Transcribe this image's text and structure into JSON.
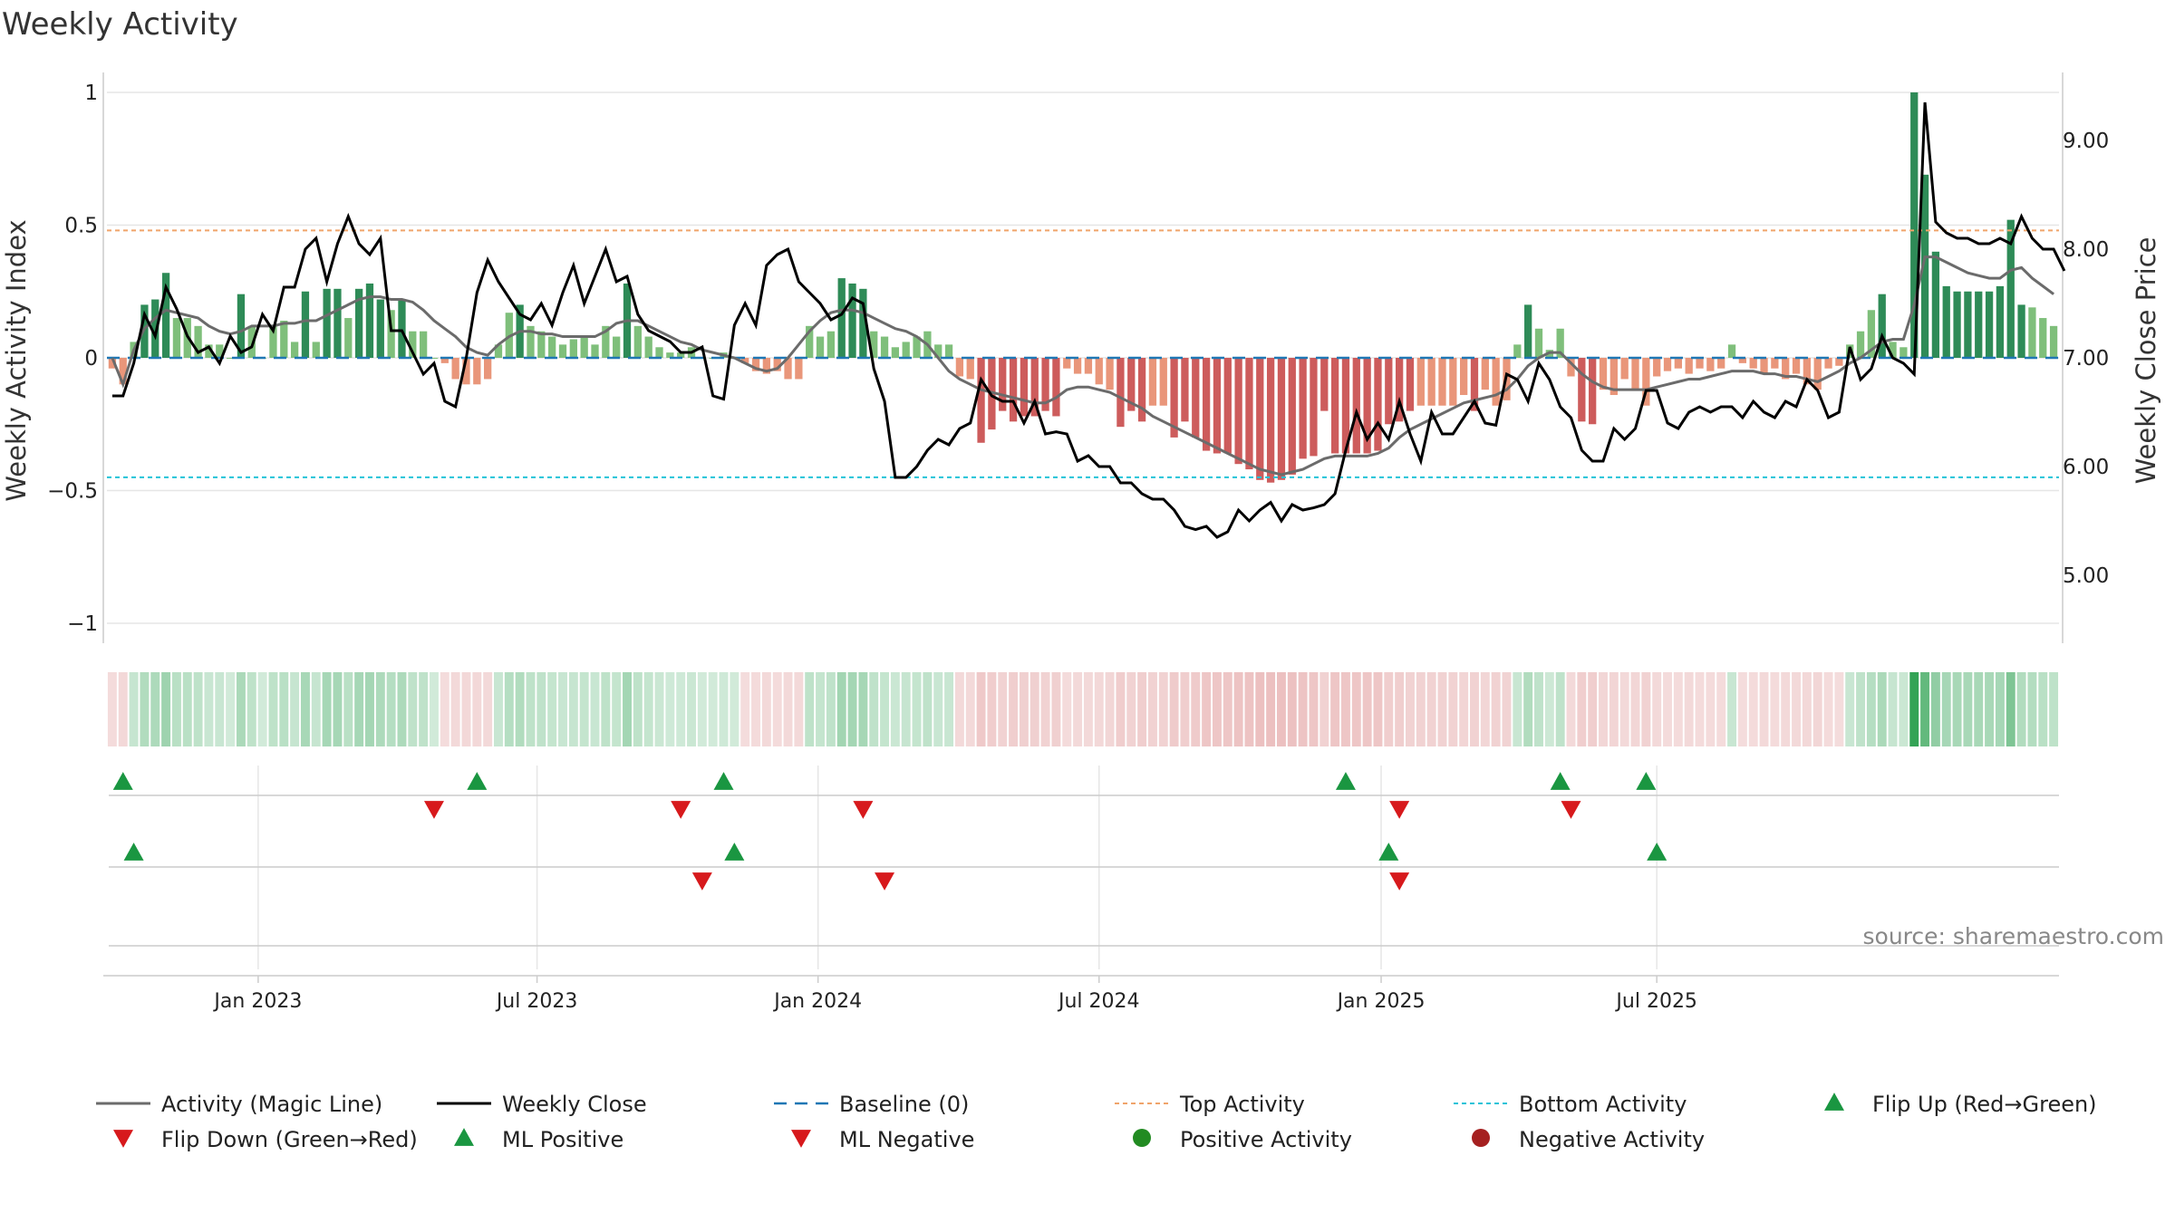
{
  "chart_data": {
    "type": "bar",
    "title": "Weekly Activity",
    "ylabel": "Weekly Activity Index",
    "y2label": "Weekly Close Price",
    "source": "source: sharemaestro.com",
    "ylim": [
      -1.1,
      1.05
    ],
    "y2lim": [
      4.55,
      9.5
    ],
    "yticks": [
      {
        "v": 1,
        "label": "1"
      },
      {
        "v": 0.5,
        "label": "0.5"
      },
      {
        "v": 0,
        "label": "0"
      },
      {
        "v": -0.5,
        "label": "−0.5"
      },
      {
        "v": -1,
        "label": "−1"
      }
    ],
    "y2ticks": [
      {
        "v": 9,
        "label": "9.00"
      },
      {
        "v": 8,
        "label": "8.00"
      },
      {
        "v": 7,
        "label": "7.00"
      },
      {
        "v": 6,
        "label": "6.00"
      },
      {
        "v": 5,
        "label": "5.00"
      }
    ],
    "xticks": [
      {
        "w": 13.6,
        "label": "Jan 2023"
      },
      {
        "w": 39.6,
        "label": "Jul 2023"
      },
      {
        "w": 65.8,
        "label": "Jan 2024"
      },
      {
        "w": 92.0,
        "label": "Jul 2024"
      },
      {
        "w": 118.3,
        "label": "Jan 2025"
      },
      {
        "w": 144.0,
        "label": "Jul 2025"
      }
    ],
    "reference_lines": {
      "top_activity": 0.48,
      "bottom_activity": -0.45,
      "baseline": 0
    },
    "series": [
      {
        "name": "Weekly Activity Index",
        "values": [
          -0.04,
          -0.1,
          0.06,
          0.2,
          0.22,
          0.32,
          0.15,
          0.15,
          0.12,
          0.05,
          0.05,
          0,
          0.24,
          0.12,
          0,
          0.12,
          0.14,
          0.06,
          0.25,
          0.06,
          0.26,
          0.26,
          0.15,
          0.26,
          0.28,
          0.22,
          0.18,
          0.22,
          0.1,
          0.1,
          0,
          -0.02,
          -0.08,
          -0.1,
          -0.1,
          -0.08,
          0.05,
          0.17,
          0.2,
          0.12,
          0.1,
          0.08,
          0.05,
          0.07,
          0.08,
          0.05,
          0.12,
          0.08,
          0.28,
          0.12,
          0.08,
          0.04,
          0.02,
          0.02,
          0.04,
          0,
          0,
          0.02,
          0,
          -0.02,
          -0.05,
          -0.06,
          -0.05,
          -0.08,
          -0.08,
          0.12,
          0.08,
          0.1,
          0.3,
          0.28,
          0.26,
          0.1,
          0.08,
          0.04,
          0.06,
          0.08,
          0.1,
          0.05,
          0.05,
          -0.07,
          -0.08,
          -0.32,
          -0.27,
          -0.2,
          -0.24,
          -0.22,
          -0.22,
          -0.2,
          -0.22,
          -0.04,
          -0.06,
          -0.06,
          -0.1,
          -0.12,
          -0.26,
          -0.2,
          -0.24,
          -0.18,
          -0.18,
          -0.3,
          -0.24,
          -0.3,
          -0.35,
          -0.36,
          -0.36,
          -0.4,
          -0.42,
          -0.46,
          -0.47,
          -0.46,
          -0.44,
          -0.38,
          -0.37,
          -0.2,
          -0.36,
          -0.36,
          -0.36,
          -0.36,
          -0.35,
          -0.25,
          -0.24,
          -0.2,
          -0.18,
          -0.18,
          -0.18,
          -0.18,
          -0.14,
          -0.2,
          -0.12,
          -0.18,
          -0.16,
          0.05,
          0.2,
          0.11,
          0.03,
          0.11,
          -0.07,
          -0.24,
          -0.25,
          -0.12,
          -0.14,
          -0.08,
          -0.12,
          -0.18,
          -0.07,
          -0.05,
          -0.04,
          -0.06,
          -0.04,
          -0.05,
          -0.04,
          0.05,
          -0.02,
          -0.04,
          -0.06,
          -0.04,
          -0.08,
          -0.06,
          -0.1,
          -0.12,
          -0.04,
          -0.03,
          0.05,
          0.1,
          0.18,
          0.24,
          0.06,
          0.04,
          1.0,
          0.69,
          0.4,
          0.27,
          0.25,
          0.25,
          0.25,
          0.25,
          0.27,
          0.52,
          0.2,
          0.19,
          0.15,
          0.12
        ]
      },
      {
        "name": "Weekly Close",
        "values": [
          6.65,
          6.65,
          6.95,
          7.4,
          7.2,
          7.65,
          7.45,
          7.2,
          7.05,
          7.1,
          6.95,
          7.2,
          7.05,
          7.1,
          7.4,
          7.25,
          7.65,
          7.65,
          8.0,
          8.1,
          7.7,
          8.05,
          8.3,
          8.05,
          7.95,
          8.1,
          7.25,
          7.25,
          7.05,
          6.85,
          6.95,
          6.6,
          6.55,
          7.0,
          7.6,
          7.9,
          7.7,
          7.55,
          7.4,
          7.35,
          7.5,
          7.3,
          7.6,
          7.85,
          7.5,
          7.75,
          8.0,
          7.7,
          7.75,
          7.4,
          7.25,
          7.2,
          7.15,
          7.05,
          7.05,
          7.1,
          6.65,
          6.62,
          7.3,
          7.5,
          7.3,
          7.85,
          7.95,
          8.0,
          7.7,
          7.6,
          7.5,
          7.35,
          7.4,
          7.55,
          7.5,
          6.9,
          6.6,
          5.9,
          5.9,
          6.0,
          6.15,
          6.25,
          6.2,
          6.35,
          6.4,
          6.8,
          6.65,
          6.6,
          6.6,
          6.4,
          6.6,
          6.3,
          6.32,
          6.3,
          6.05,
          6.1,
          6.0,
          6.0,
          5.85,
          5.85,
          5.75,
          5.7,
          5.7,
          5.6,
          5.45,
          5.42,
          5.45,
          5.35,
          5.4,
          5.6,
          5.5,
          5.6,
          5.67,
          5.5,
          5.65,
          5.6,
          5.62,
          5.65,
          5.75,
          6.15,
          6.5,
          6.25,
          6.4,
          6.25,
          6.6,
          6.3,
          6.05,
          6.5,
          6.3,
          6.3,
          6.45,
          6.6,
          6.4,
          6.38,
          6.85,
          6.8,
          6.6,
          6.95,
          6.8,
          6.55,
          6.45,
          6.15,
          6.05,
          6.05,
          6.35,
          6.25,
          6.35,
          6.7,
          6.7,
          6.4,
          6.35,
          6.5,
          6.55,
          6.5,
          6.55,
          6.55,
          6.45,
          6.6,
          6.5,
          6.45,
          6.6,
          6.55,
          6.8,
          6.7,
          6.45,
          6.5,
          7.1,
          6.8,
          6.9,
          7.2,
          7.0,
          6.95,
          6.85,
          9.35,
          8.25,
          8.15,
          8.1,
          8.1,
          8.05,
          8.05,
          8.1,
          8.05,
          8.3,
          8.1,
          8.0,
          8.0,
          7.8
        ]
      },
      {
        "name": "Activity (Magic Line)",
        "values": [
          0.0,
          -0.1,
          0.03,
          0.11,
          0.15,
          0.18,
          0.17,
          0.16,
          0.15,
          0.12,
          0.1,
          0.09,
          0.1,
          0.12,
          0.12,
          0.12,
          0.13,
          0.13,
          0.14,
          0.14,
          0.16,
          0.18,
          0.2,
          0.22,
          0.23,
          0.23,
          0.22,
          0.22,
          0.21,
          0.18,
          0.14,
          0.11,
          0.08,
          0.04,
          0.02,
          0.01,
          0.05,
          0.08,
          0.1,
          0.1,
          0.09,
          0.09,
          0.08,
          0.08,
          0.08,
          0.08,
          0.1,
          0.13,
          0.14,
          0.14,
          0.12,
          0.1,
          0.08,
          0.06,
          0.05,
          0.03,
          0.02,
          0.01,
          0.0,
          -0.02,
          -0.04,
          -0.05,
          -0.04,
          0.0,
          0.05,
          0.1,
          0.14,
          0.17,
          0.18,
          0.18,
          0.17,
          0.15,
          0.13,
          0.11,
          0.1,
          0.08,
          0.05,
          0.0,
          -0.05,
          -0.08,
          -0.1,
          -0.12,
          -0.13,
          -0.14,
          -0.15,
          -0.16,
          -0.17,
          -0.17,
          -0.15,
          -0.12,
          -0.11,
          -0.11,
          -0.12,
          -0.13,
          -0.15,
          -0.17,
          -0.19,
          -0.22,
          -0.24,
          -0.26,
          -0.28,
          -0.3,
          -0.32,
          -0.34,
          -0.36,
          -0.38,
          -0.4,
          -0.42,
          -0.43,
          -0.44,
          -0.43,
          -0.42,
          -0.4,
          -0.38,
          -0.37,
          -0.37,
          -0.37,
          -0.37,
          -0.36,
          -0.34,
          -0.3,
          -0.27,
          -0.25,
          -0.23,
          -0.21,
          -0.19,
          -0.17,
          -0.16,
          -0.15,
          -0.14,
          -0.12,
          -0.08,
          -0.03,
          0.0,
          0.02,
          0.02,
          -0.02,
          -0.06,
          -0.09,
          -0.11,
          -0.12,
          -0.12,
          -0.12,
          -0.12,
          -0.11,
          -0.1,
          -0.09,
          -0.08,
          -0.08,
          -0.07,
          -0.06,
          -0.05,
          -0.05,
          -0.05,
          -0.06,
          -0.06,
          -0.07,
          -0.07,
          -0.08,
          -0.09,
          -0.07,
          -0.05,
          -0.02,
          0.0,
          0.03,
          0.06,
          0.07,
          0.07,
          0.2,
          0.38,
          0.38,
          0.36,
          0.34,
          0.32,
          0.31,
          0.3,
          0.3,
          0.33,
          0.34,
          0.3,
          0.27,
          0.24
        ]
      },
      {
        "name": "Flip Up (Red→Green)",
        "weeks": [
          1,
          34,
          57,
          115,
          135,
          143
        ]
      },
      {
        "name": "Flip Down (Green→Red)",
        "weeks": [
          30,
          53,
          70,
          120,
          136
        ]
      },
      {
        "name": "ML Positive",
        "weeks": [
          2,
          58,
          119,
          144
        ]
      },
      {
        "name": "ML Negative",
        "weeks": [
          55,
          72,
          120
        ]
      }
    ],
    "legend": [
      {
        "label": "Activity (Magic Line)",
        "kind": "line",
        "color": "#6b6b6b"
      },
      {
        "label": "Weekly Close",
        "kind": "line",
        "color": "#000000"
      },
      {
        "label": "Baseline (0)",
        "kind": "dash",
        "color": "#1f77b4"
      },
      {
        "label": "Top Activity",
        "kind": "dot",
        "color": "#f0a46a"
      },
      {
        "label": "Bottom Activity",
        "kind": "dot",
        "color": "#22c3d8"
      },
      {
        "label": "Flip Up (Red→Green)",
        "kind": "tri-up",
        "color": "#1a9641"
      },
      {
        "label": "Flip Down (Green→Red)",
        "kind": "tri-down",
        "color": "#d7191c"
      },
      {
        "label": "ML Positive",
        "kind": "tri-up",
        "color": "#1a9641"
      },
      {
        "label": "ML Negative",
        "kind": "tri-down",
        "color": "#d7191c"
      },
      {
        "label": "Positive Activity",
        "kind": "circle",
        "color": "#228b22"
      },
      {
        "label": "Negative Activity",
        "kind": "circle",
        "color": "#a52020"
      }
    ],
    "colors": {
      "pos_strong": "#2e8b57",
      "pos_light": "#7fbf7b",
      "neg_strong": "#cd5c5c",
      "neg_light": "#e9967a",
      "magic": "#6b6b6b",
      "close": "#000000",
      "baseline": "#1f77b4",
      "top": "#f0a46a",
      "bottom": "#22c3d8",
      "up": "#1a9641",
      "down": "#d7191c",
      "grid": "#e6e6e6",
      "axis": "#cccccc"
    }
  }
}
